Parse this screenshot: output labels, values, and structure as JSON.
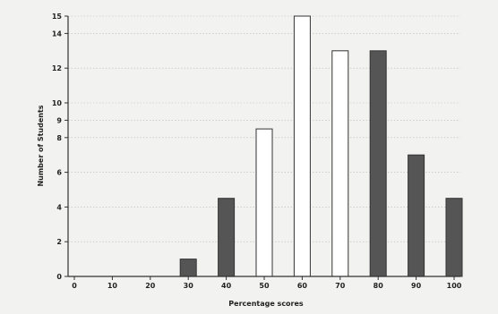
{
  "chart_data": {
    "type": "bar",
    "xlabel": "Percentage scores",
    "ylabel": "Number of Students",
    "ylim": [
      0,
      15
    ],
    "grid": true,
    "y_ticks": [
      "0",
      "2",
      "4",
      "6",
      "8",
      "9",
      "10",
      "12",
      "14",
      "15"
    ],
    "y_tick_values": [
      0,
      2,
      4,
      6,
      8,
      9,
      10,
      12,
      14,
      15
    ],
    "categories": [
      "0",
      "10",
      "20",
      "30",
      "40",
      "50",
      "60",
      "70",
      "80",
      "90",
      "100"
    ],
    "values": [
      0,
      0,
      0,
      1,
      4.5,
      8.5,
      15,
      13,
      13,
      7,
      4.5
    ],
    "bar_fills": [
      "",
      "",
      "",
      "#555555",
      "#555555",
      "#ffffff",
      "#ffffff",
      "#ffffff",
      "#555555",
      "#555555",
      "#555555"
    ]
  }
}
